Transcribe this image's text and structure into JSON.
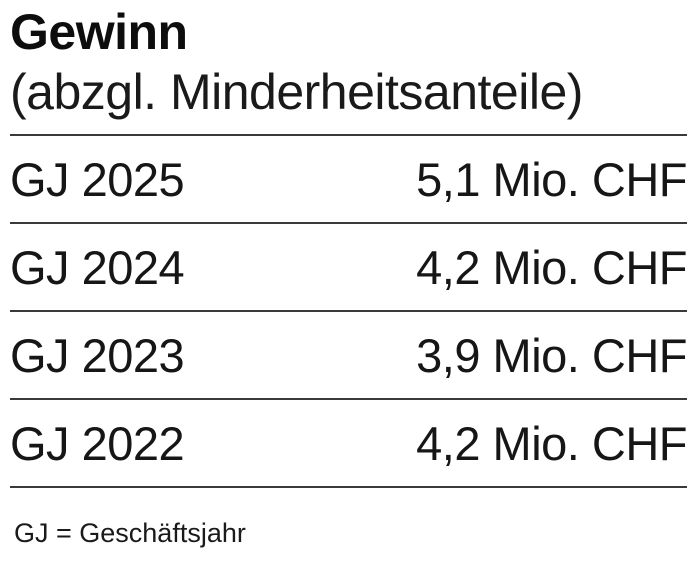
{
  "header": {
    "title": "Gewinn",
    "subtitle": "(abzgl. Minderheitsanteile)"
  },
  "table": {
    "rows": [
      {
        "label": "GJ 2025",
        "value": "5,1 Mio. CHF"
      },
      {
        "label": "GJ 2024",
        "value": "4,2 Mio. CHF"
      },
      {
        "label": "GJ 2023",
        "value": "3,9 Mio. CHF"
      },
      {
        "label": "GJ 2022",
        "value": "4,2 Mio. CHF"
      }
    ]
  },
  "footnote": "GJ = Geschäftsjahr",
  "colors": {
    "background": "#ffffff",
    "text": "#141414",
    "divider": "#3a3a3a"
  },
  "chart_data": {
    "type": "table",
    "title": "Gewinn (abzgl. Minderheitsanteile)",
    "categories": [
      "GJ 2025",
      "GJ 2024",
      "GJ 2023",
      "GJ 2022"
    ],
    "values": [
      5.1,
      4.2,
      3.9,
      4.2
    ],
    "unit": "Mio. CHF",
    "value_labels": [
      "5,1 Mio. CHF",
      "4,2 Mio. CHF",
      "3,9 Mio. CHF",
      "4,2 Mio. CHF"
    ],
    "footnote": "GJ = Geschäftsjahr",
    "grid": false,
    "legend": false
  }
}
